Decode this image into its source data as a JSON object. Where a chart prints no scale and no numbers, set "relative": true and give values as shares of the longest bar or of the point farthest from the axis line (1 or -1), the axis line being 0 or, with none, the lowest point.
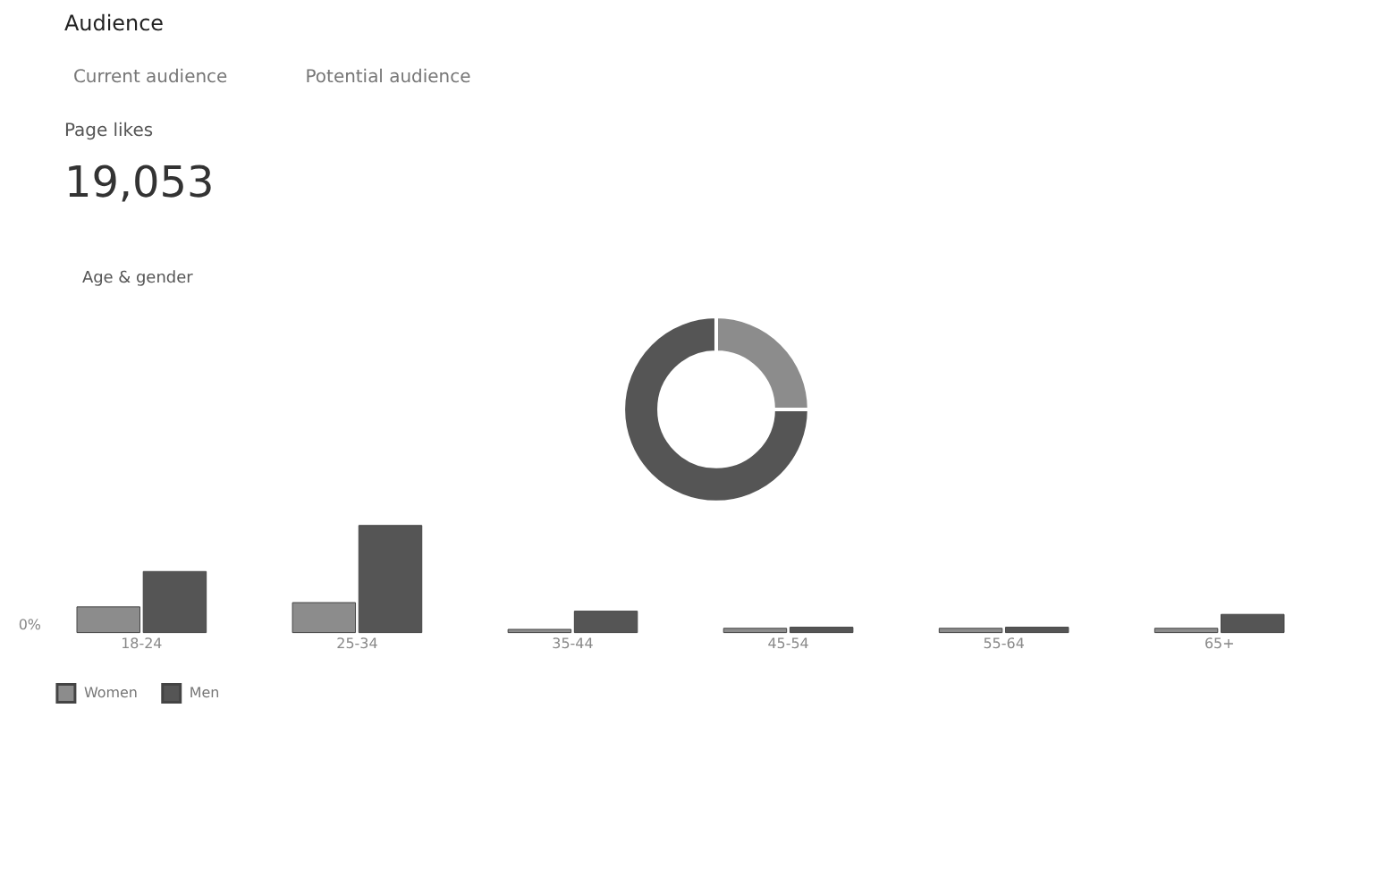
{
  "chart_data": [
    {
      "type": "other",
      "title": "Audience",
      "annotations": [
        "Current audience",
        "Potential audience",
        "Page likes",
        "19,053",
        "Age & gender"
      ]
    },
    {
      "type": "donut",
      "categories": [
        null,
        null
      ],
      "values": [
        25,
        75
      ],
      "colors": [
        "#8c8c8c",
        "#555555"
      ]
    },
    {
      "type": "bar",
      "relative": true,
      "categories": [
        "18-24",
        "25-34",
        "35-44",
        "45-54",
        "55-64",
        "65+"
      ],
      "series": [
        {
          "name": "Women",
          "color": "#8c8c8c",
          "values": [
            0.24,
            0.28,
            0.03,
            0.04,
            0.04,
            0.04
          ]
        },
        {
          "name": "Men",
          "color": "#555555",
          "values": [
            0.57,
            1,
            0.2,
            0.05,
            0.05,
            0.17
          ]
        }
      ],
      "annotations": [
        "0%"
      ],
      "legend": "bottom",
      "grid": false
    }
  ]
}
